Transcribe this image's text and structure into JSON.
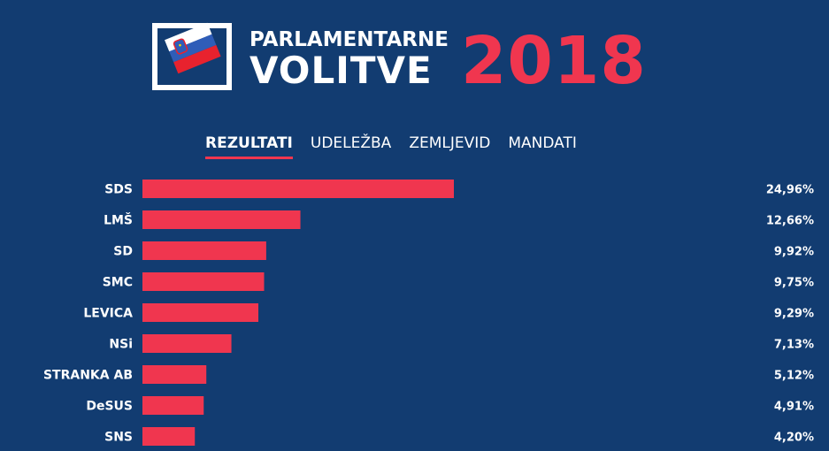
{
  "header": {
    "line1": "PARLAMENTARNE",
    "line2": "VOLITVE",
    "year": "2018"
  },
  "tabs": [
    {
      "label": "REZULTATI",
      "active": true
    },
    {
      "label": "UDELEŽBA",
      "active": false
    },
    {
      "label": "ZEMLJEVID",
      "active": false
    },
    {
      "label": "MANDATI",
      "active": false
    }
  ],
  "colors": {
    "background": "#123c71",
    "accent": "#f0364f",
    "text": "#ffffff"
  },
  "chart_data": {
    "type": "bar",
    "orientation": "horizontal",
    "categories": [
      "SDS",
      "LMŠ",
      "SD",
      "SMC",
      "LEVICA",
      "NSi",
      "STRANKA AB",
      "DeSUS",
      "SNS"
    ],
    "values": [
      24.96,
      12.66,
      9.92,
      9.75,
      9.29,
      7.13,
      5.12,
      4.91,
      4.2
    ],
    "value_labels": [
      "24,96%",
      "12,66%",
      "9,92%",
      "9,75%",
      "9,29%",
      "7,13%",
      "5,12%",
      "4,91%",
      "4,20%"
    ],
    "title": "",
    "xlabel": "",
    "ylabel": "",
    "grid": false,
    "legend": "none"
  }
}
